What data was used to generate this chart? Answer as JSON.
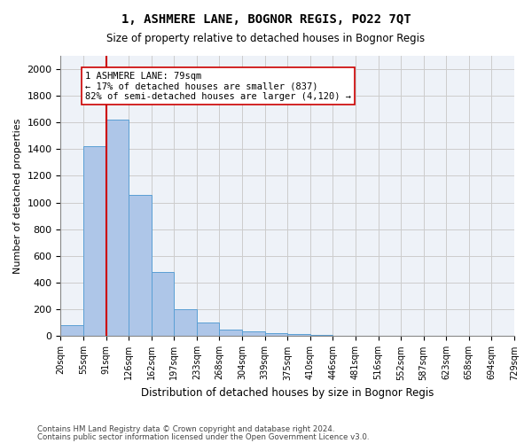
{
  "title1": "1, ASHMERE LANE, BOGNOR REGIS, PO22 7QT",
  "title2": "Size of property relative to detached houses in Bognor Regis",
  "xlabel": "Distribution of detached houses by size in Bognor Regis",
  "ylabel": "Number of detached properties",
  "bin_edges": [
    "20sqm",
    "55sqm",
    "91sqm",
    "126sqm",
    "162sqm",
    "197sqm",
    "233sqm",
    "268sqm",
    "304sqm",
    "339sqm",
    "375sqm",
    "410sqm",
    "446sqm",
    "481sqm",
    "516sqm",
    "552sqm",
    "587sqm",
    "623sqm",
    "658sqm",
    "694sqm",
    "729sqm"
  ],
  "bar_values": [
    80,
    1420,
    1620,
    1055,
    480,
    205,
    105,
    48,
    35,
    25,
    18,
    10,
    0,
    0,
    0,
    0,
    0,
    0,
    0,
    0
  ],
  "bar_color": "#aec6e8",
  "bar_edge_color": "#5a9fd4",
  "property_line_x": 1.5,
  "vline_color": "#cc0000",
  "annotation_text": "1 ASHMERE LANE: 79sqm\n← 17% of detached houses are smaller (837)\n82% of semi-detached houses are larger (4,120) →",
  "annotation_box_color": "#ffffff",
  "annotation_box_edge": "#cc0000",
  "ylim": [
    0,
    2100
  ],
  "yticks": [
    0,
    200,
    400,
    600,
    800,
    1000,
    1200,
    1400,
    1600,
    1800,
    2000
  ],
  "footer1": "Contains HM Land Registry data © Crown copyright and database right 2024.",
  "footer2": "Contains public sector information licensed under the Open Government Licence v3.0.",
  "bg_color": "#ffffff",
  "plot_bg_color": "#eef2f8",
  "grid_color": "#cccccc"
}
